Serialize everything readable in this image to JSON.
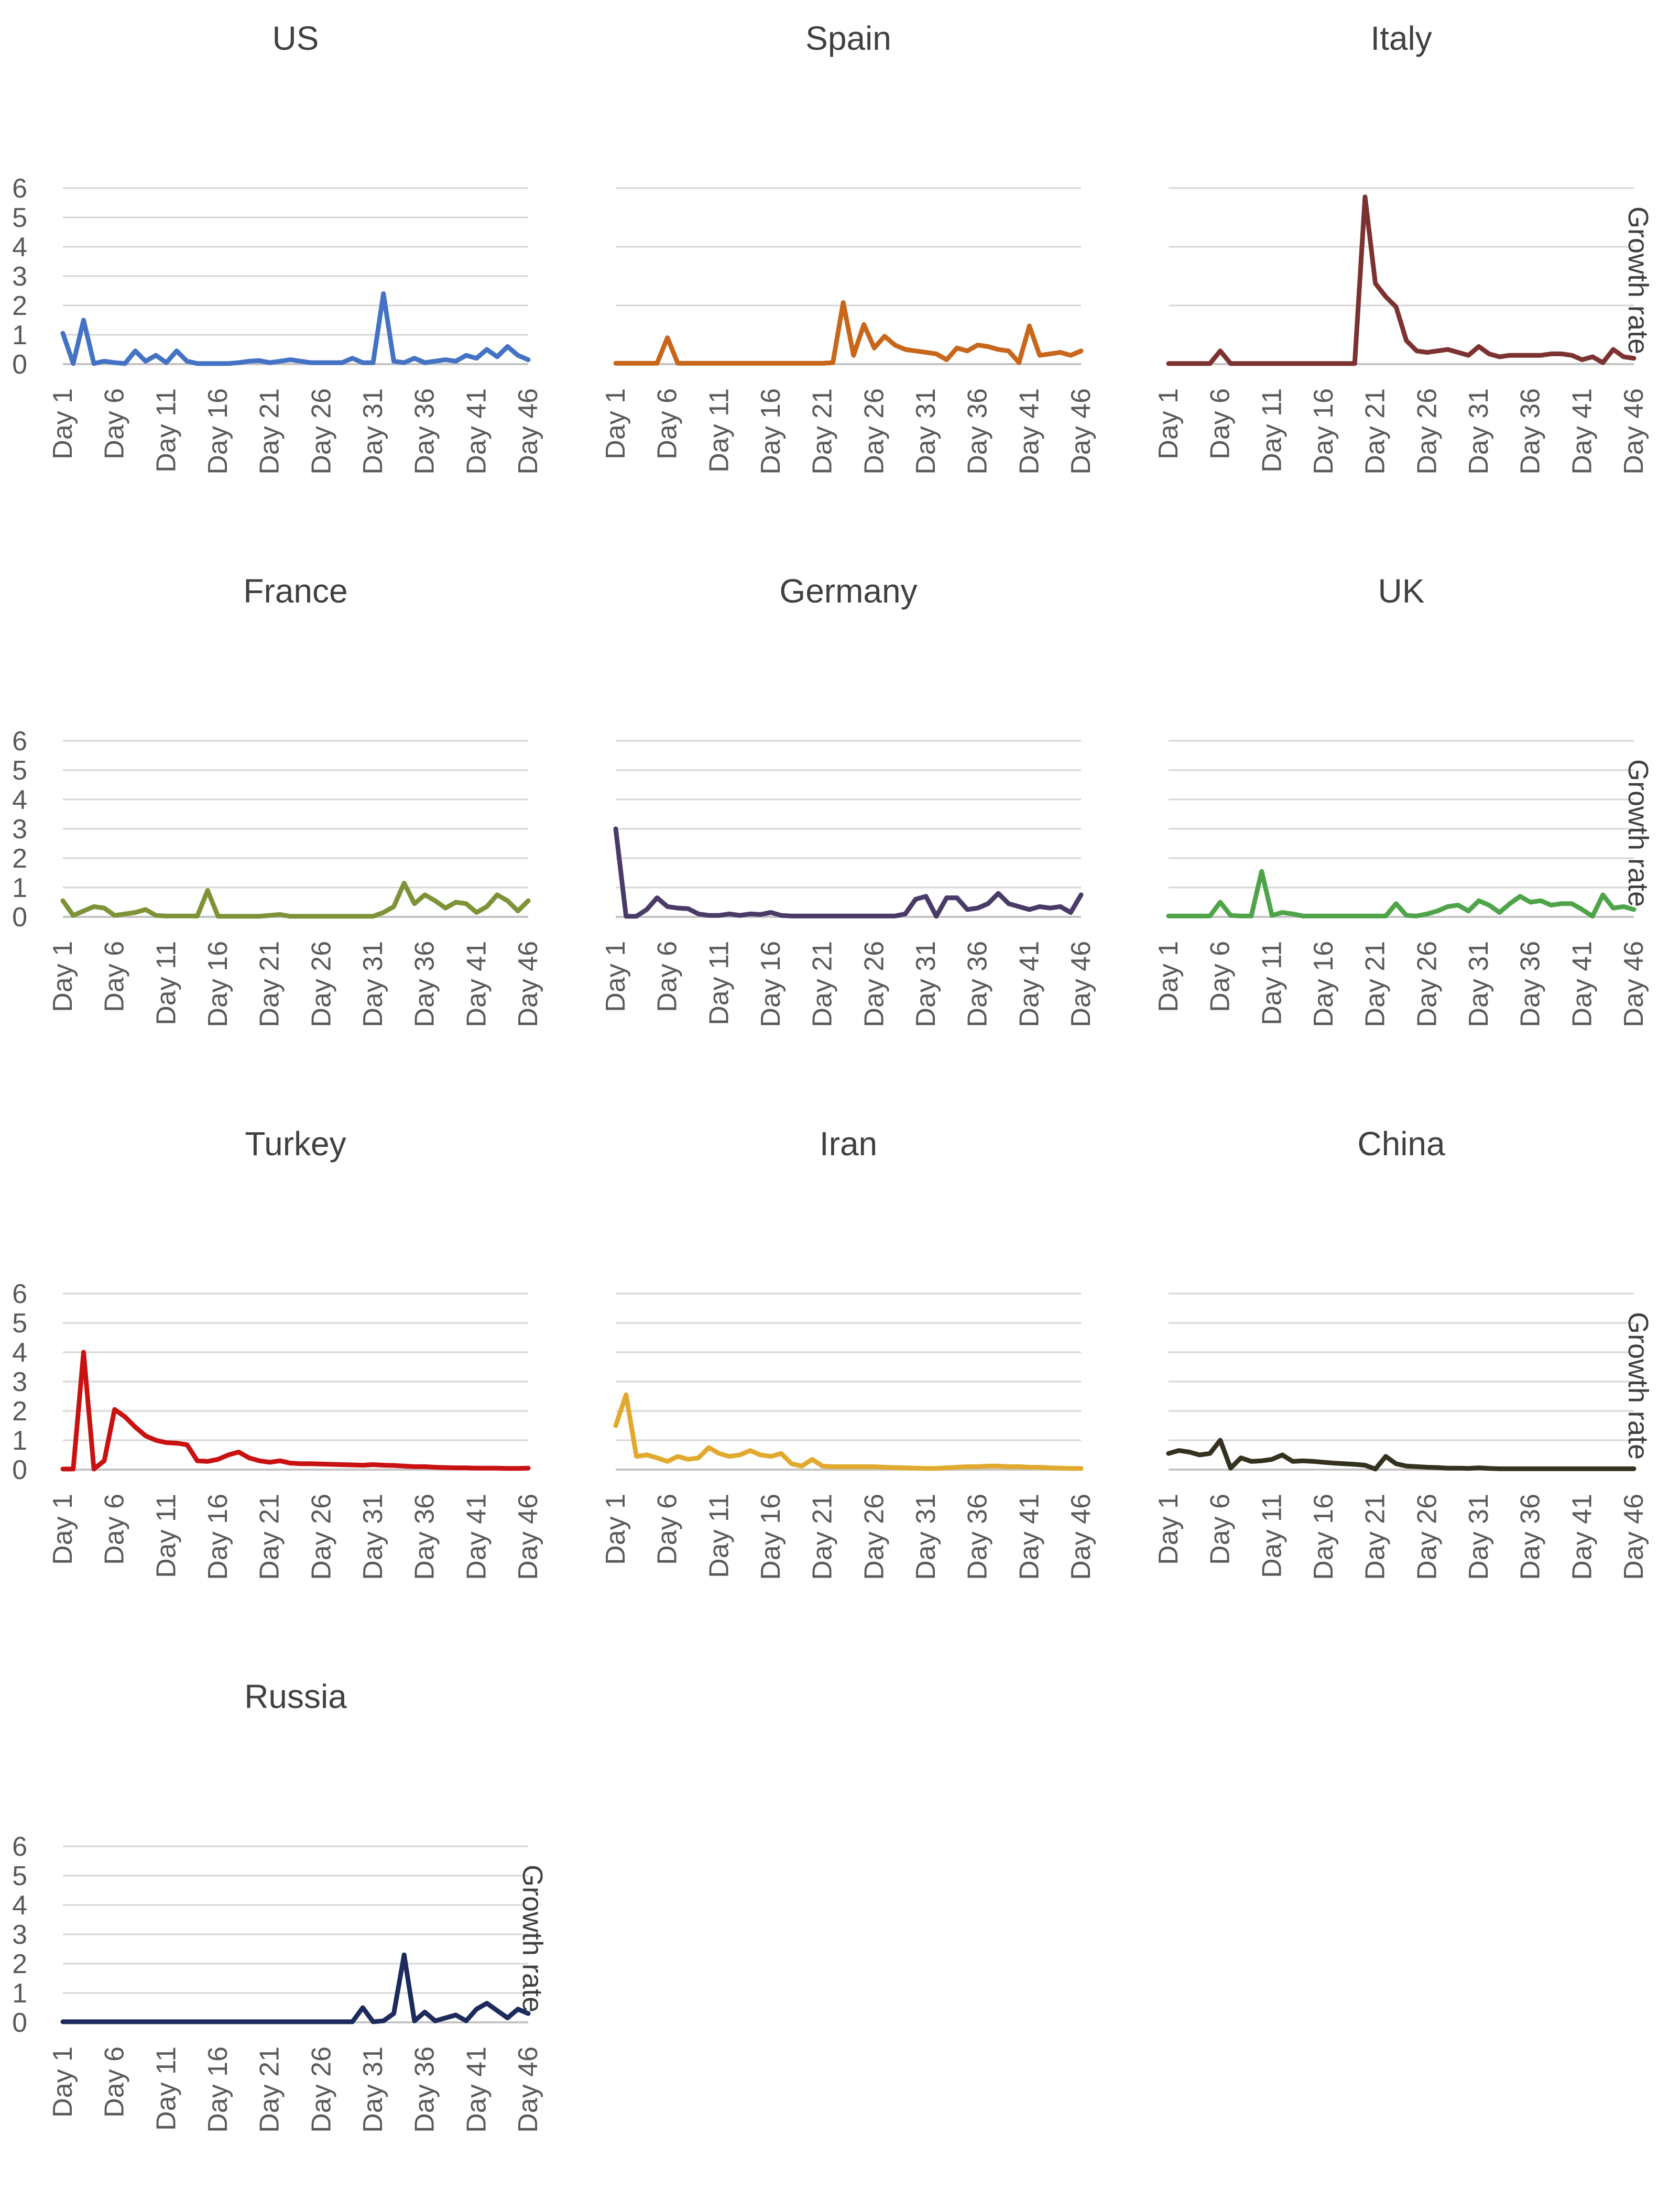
{
  "figure": {
    "right_axis_title": "Growth rate",
    "y_ticks": [
      "0",
      "1",
      "2",
      "3",
      "4",
      "5",
      "6"
    ],
    "x_tick_labels": [
      "Day 1",
      "Day 6",
      "Day 11",
      "Day 16",
      "Day 21",
      "Day 26",
      "Day 31",
      "Day 36",
      "Day 41",
      "Day 46"
    ],
    "x_tick_days": [
      1,
      6,
      11,
      16,
      21,
      26,
      31,
      36,
      41,
      46
    ],
    "n_days": 46
  },
  "chart_data": [
    {
      "type": "line",
      "title": "US",
      "color": "#4472C4",
      "row": 0,
      "col": 0,
      "ylim": [
        0,
        6
      ],
      "gridline_step": 1,
      "show_y_tick_labels": true,
      "show_right_axis_title": false,
      "xlabel": "",
      "ylabel": "Growth rate",
      "legend": "none",
      "grid": true,
      "values": [
        1.05,
        0.02,
        1.5,
        0.02,
        0.1,
        0.05,
        0.02,
        0.45,
        0.1,
        0.3,
        0.05,
        0.45,
        0.1,
        0.02,
        0.02,
        0.02,
        0.02,
        0.05,
        0.1,
        0.12,
        0.05,
        0.1,
        0.15,
        0.1,
        0.05,
        0.05,
        0.05,
        0.05,
        0.2,
        0.05,
        0.05,
        2.4,
        0.1,
        0.05,
        0.2,
        0.05,
        0.1,
        0.15,
        0.1,
        0.3,
        0.2,
        0.5,
        0.25,
        0.6,
        0.3,
        0.15
      ]
    },
    {
      "type": "line",
      "title": "Spain",
      "color": "#C8661B",
      "row": 0,
      "col": 1,
      "ylim": [
        0,
        6
      ],
      "gridline_step": 2,
      "show_y_tick_labels": false,
      "show_right_axis_title": false,
      "xlabel": "",
      "ylabel": "Growth rate",
      "legend": "none",
      "grid": true,
      "values": [
        0.03,
        0.03,
        0.03,
        0.03,
        0.03,
        0.9,
        0.03,
        0.03,
        0.03,
        0.03,
        0.03,
        0.03,
        0.03,
        0.03,
        0.03,
        0.03,
        0.03,
        0.03,
        0.03,
        0.03,
        0.03,
        0.05,
        2.1,
        0.3,
        1.35,
        0.55,
        0.95,
        0.65,
        0.5,
        0.45,
        0.4,
        0.35,
        0.15,
        0.55,
        0.45,
        0.65,
        0.6,
        0.5,
        0.45,
        0.05,
        1.3,
        0.3,
        0.35,
        0.4,
        0.3,
        0.45
      ]
    },
    {
      "type": "line",
      "title": "Italy",
      "color": "#7D3232",
      "row": 0,
      "col": 2,
      "ylim": [
        0,
        6
      ],
      "gridline_step": 2,
      "show_y_tick_labels": false,
      "show_right_axis_title": true,
      "xlabel": "",
      "ylabel": "Growth rate",
      "legend": "none",
      "grid": true,
      "values": [
        0.02,
        0.02,
        0.02,
        0.02,
        0.02,
        0.45,
        0.02,
        0.02,
        0.02,
        0.02,
        0.02,
        0.02,
        0.02,
        0.02,
        0.02,
        0.02,
        0.02,
        0.02,
        0.02,
        5.7,
        2.75,
        2.3,
        1.95,
        0.8,
        0.45,
        0.4,
        0.45,
        0.5,
        0.4,
        0.3,
        0.6,
        0.35,
        0.25,
        0.3,
        0.3,
        0.3,
        0.3,
        0.35,
        0.35,
        0.3,
        0.15,
        0.25,
        0.05,
        0.5,
        0.25,
        0.2
      ]
    },
    {
      "type": "line",
      "title": "France",
      "color": "#7E9338",
      "row": 1,
      "col": 0,
      "ylim": [
        0,
        6
      ],
      "gridline_step": 1,
      "show_y_tick_labels": true,
      "show_right_axis_title": false,
      "xlabel": "",
      "ylabel": "Growth rate",
      "legend": "none",
      "grid": true,
      "values": [
        0.55,
        0.05,
        0.2,
        0.35,
        0.3,
        0.05,
        0.1,
        0.15,
        0.25,
        0.05,
        0.03,
        0.03,
        0.03,
        0.03,
        0.9,
        0.02,
        0.02,
        0.02,
        0.02,
        0.02,
        0.05,
        0.08,
        0.02,
        0.02,
        0.02,
        0.02,
        0.02,
        0.02,
        0.02,
        0.02,
        0.02,
        0.15,
        0.35,
        1.15,
        0.45,
        0.75,
        0.55,
        0.3,
        0.5,
        0.45,
        0.15,
        0.35,
        0.75,
        0.55,
        0.2,
        0.55
      ]
    },
    {
      "type": "line",
      "title": "Germany",
      "color": "#4A3A68",
      "row": 1,
      "col": 1,
      "ylim": [
        0,
        6
      ],
      "gridline_step": 1,
      "show_y_tick_labels": false,
      "show_right_axis_title": false,
      "xlabel": "",
      "ylabel": "Growth rate",
      "legend": "none",
      "grid": true,
      "values": [
        3.0,
        0.02,
        0.02,
        0.25,
        0.65,
        0.35,
        0.3,
        0.28,
        0.1,
        0.05,
        0.05,
        0.1,
        0.05,
        0.1,
        0.08,
        0.15,
        0.05,
        0.03,
        0.03,
        0.03,
        0.03,
        0.03,
        0.03,
        0.03,
        0.03,
        0.03,
        0.03,
        0.03,
        0.1,
        0.6,
        0.7,
        0.02,
        0.65,
        0.65,
        0.25,
        0.3,
        0.45,
        0.8,
        0.45,
        0.35,
        0.25,
        0.35,
        0.3,
        0.35,
        0.15,
        0.75
      ]
    },
    {
      "type": "line",
      "title": "UK",
      "color": "#4FA44A",
      "row": 1,
      "col": 2,
      "ylim": [
        0,
        6
      ],
      "gridline_step": 1,
      "show_y_tick_labels": false,
      "show_right_axis_title": true,
      "xlabel": "",
      "ylabel": "Growth rate",
      "legend": "none",
      "grid": true,
      "values": [
        0.03,
        0.03,
        0.03,
        0.03,
        0.03,
        0.5,
        0.05,
        0.03,
        0.03,
        1.55,
        0.05,
        0.15,
        0.1,
        0.03,
        0.03,
        0.03,
        0.03,
        0.03,
        0.03,
        0.03,
        0.03,
        0.03,
        0.45,
        0.05,
        0.03,
        0.1,
        0.2,
        0.35,
        0.4,
        0.2,
        0.55,
        0.4,
        0.15,
        0.45,
        0.7,
        0.5,
        0.55,
        0.4,
        0.45,
        0.45,
        0.25,
        0.02,
        0.75,
        0.3,
        0.35,
        0.25
      ]
    },
    {
      "type": "line",
      "title": "Turkey",
      "color": "#C91111",
      "row": 2,
      "col": 0,
      "ylim": [
        0,
        6
      ],
      "gridline_step": 1,
      "show_y_tick_labels": true,
      "show_right_axis_title": false,
      "xlabel": "",
      "ylabel": "Growth rate",
      "legend": "none",
      "grid": true,
      "values": [
        0.02,
        0.02,
        4.0,
        0.02,
        0.3,
        2.05,
        1.8,
        1.45,
        1.15,
        1.0,
        0.92,
        0.9,
        0.85,
        0.3,
        0.28,
        0.35,
        0.5,
        0.6,
        0.4,
        0.3,
        0.25,
        0.3,
        0.22,
        0.2,
        0.2,
        0.19,
        0.18,
        0.17,
        0.16,
        0.15,
        0.17,
        0.15,
        0.14,
        0.12,
        0.1,
        0.1,
        0.08,
        0.07,
        0.06,
        0.06,
        0.05,
        0.05,
        0.05,
        0.04,
        0.04,
        0.05
      ]
    },
    {
      "type": "line",
      "title": "Iran",
      "color": "#E2A92F",
      "row": 2,
      "col": 1,
      "ylim": [
        0,
        6
      ],
      "gridline_step": 1,
      "show_y_tick_labels": false,
      "show_right_axis_title": false,
      "xlabel": "",
      "ylabel": "Growth rate",
      "legend": "none",
      "grid": true,
      "values": [
        1.5,
        2.55,
        0.45,
        0.5,
        0.4,
        0.28,
        0.45,
        0.35,
        0.4,
        0.75,
        0.55,
        0.45,
        0.5,
        0.65,
        0.5,
        0.45,
        0.55,
        0.2,
        0.12,
        0.35,
        0.12,
        0.1,
        0.1,
        0.1,
        0.1,
        0.1,
        0.08,
        0.07,
        0.06,
        0.05,
        0.04,
        0.04,
        0.06,
        0.08,
        0.1,
        0.1,
        0.12,
        0.12,
        0.1,
        0.1,
        0.08,
        0.08,
        0.06,
        0.05,
        0.04,
        0.04
      ]
    },
    {
      "type": "line",
      "title": "China",
      "color": "#34321E",
      "row": 2,
      "col": 2,
      "ylim": [
        0,
        6
      ],
      "gridline_step": 1,
      "show_y_tick_labels": false,
      "show_right_axis_title": true,
      "xlabel": "",
      "ylabel": "Growth rate",
      "legend": "none",
      "grid": true,
      "values": [
        0.55,
        0.65,
        0.6,
        0.5,
        0.55,
        1.0,
        0.05,
        0.4,
        0.28,
        0.3,
        0.35,
        0.5,
        0.28,
        0.3,
        0.28,
        0.25,
        0.22,
        0.2,
        0.18,
        0.15,
        0.02,
        0.45,
        0.2,
        0.12,
        0.1,
        0.08,
        0.07,
        0.05,
        0.05,
        0.04,
        0.06,
        0.04,
        0.03,
        0.03,
        0.03,
        0.03,
        0.03,
        0.03,
        0.03,
        0.03,
        0.03,
        0.03,
        0.03,
        0.03,
        0.03,
        0.03
      ]
    },
    {
      "type": "line",
      "title": "Russia",
      "color": "#1C2A5C",
      "row": 3,
      "col": 0,
      "ylim": [
        0,
        6
      ],
      "gridline_step": 1,
      "show_y_tick_labels": true,
      "show_right_axis_title": true,
      "xlabel": "",
      "ylabel": "Growth rate",
      "legend": "none",
      "grid": true,
      "values": [
        0.02,
        0.02,
        0.02,
        0.02,
        0.02,
        0.02,
        0.02,
        0.02,
        0.02,
        0.02,
        0.02,
        0.02,
        0.02,
        0.02,
        0.02,
        0.02,
        0.02,
        0.02,
        0.02,
        0.02,
        0.02,
        0.02,
        0.02,
        0.02,
        0.02,
        0.02,
        0.02,
        0.02,
        0.02,
        0.5,
        0.02,
        0.05,
        0.3,
        2.3,
        0.05,
        0.35,
        0.05,
        0.15,
        0.25,
        0.05,
        0.45,
        0.65,
        0.4,
        0.15,
        0.45,
        0.3
      ]
    }
  ]
}
